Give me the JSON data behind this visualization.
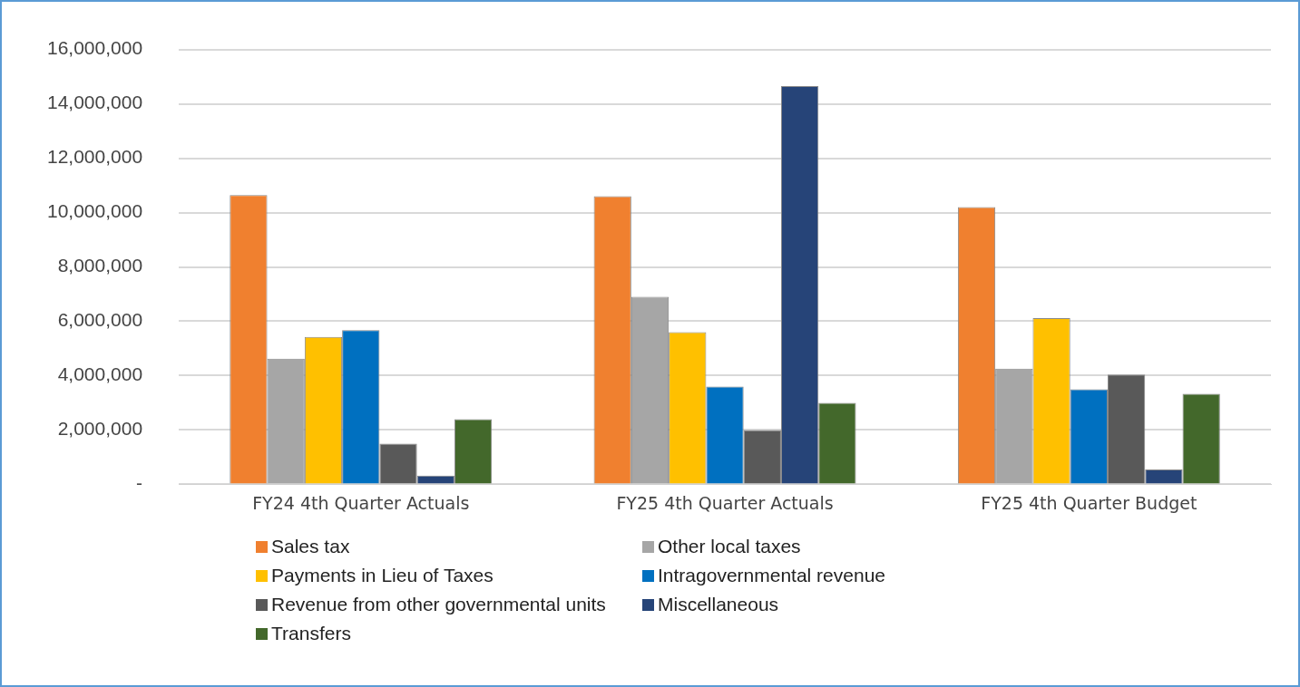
{
  "chart_data": {
    "type": "bar",
    "categories": [
      "FY24 4th Quarter Actuals",
      "FY25 4th Quarter Actuals",
      "FY25 4th Quarter Budget"
    ],
    "series": [
      {
        "name": "Sales tax",
        "color": "#f0802f",
        "values": [
          10640000,
          10600000,
          10200000
        ]
      },
      {
        "name": "Other local taxes",
        "color": "#a6a6a6",
        "values": [
          4620000,
          6900000,
          4260000
        ]
      },
      {
        "name": "Payments in Lieu of Taxes",
        "color": "#ffc000",
        "values": [
          5420000,
          5600000,
          6120000
        ]
      },
      {
        "name": "Intragovernmental revenue",
        "color": "#0070c0",
        "values": [
          5670000,
          3600000,
          3500000
        ]
      },
      {
        "name": "Revenue from other governmental units",
        "color": "#595959",
        "values": [
          1500000,
          2000000,
          4040000
        ]
      },
      {
        "name": "Miscellaneous",
        "color": "#264478",
        "values": [
          320000,
          14650000,
          550000
        ]
      },
      {
        "name": "Transfers",
        "color": "#43682b",
        "values": [
          2400000,
          3000000,
          3330000
        ]
      }
    ],
    "ylim": [
      0,
      16000000
    ],
    "yticks": [
      {
        "value": 0,
        "label": "-"
      },
      {
        "value": 2000000,
        "label": "2,000,000"
      },
      {
        "value": 4000000,
        "label": "4,000,000"
      },
      {
        "value": 6000000,
        "label": "6,000,000"
      },
      {
        "value": 8000000,
        "label": "8,000,000"
      },
      {
        "value": 10000000,
        "label": "10,000,000"
      },
      {
        "value": 12000000,
        "label": "12,000,000"
      },
      {
        "value": 14000000,
        "label": "14,000,000"
      },
      {
        "value": 16000000,
        "label": "16,000,000"
      }
    ],
    "grid": "y",
    "legend": "bottom"
  }
}
